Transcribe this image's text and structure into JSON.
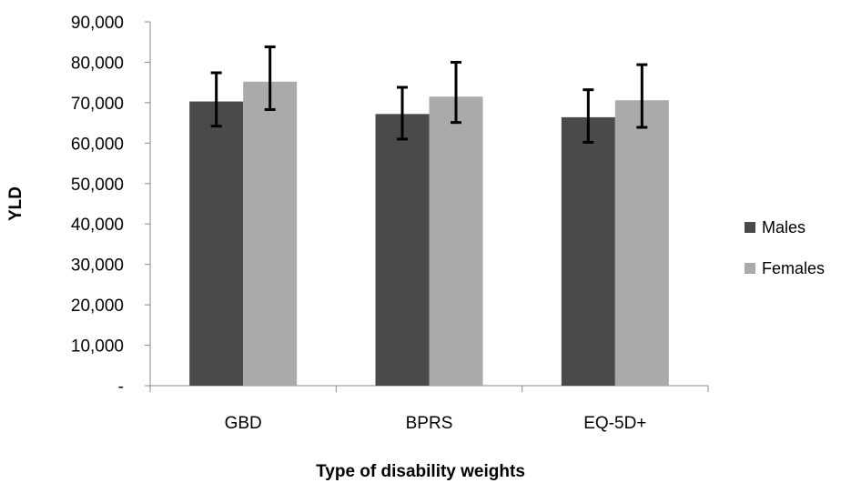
{
  "chart_data": {
    "type": "bar",
    "title": "",
    "xlabel": "Type of disability weights",
    "ylabel": "YLD",
    "categories": [
      "GBD",
      "BPRS",
      "EQ-5D+"
    ],
    "series": [
      {
        "name": "Males",
        "color": "#4a4a4a",
        "values": [
          70300,
          67200,
          66400
        ],
        "error_low": [
          64200,
          61000,
          60200
        ],
        "error_high": [
          77400,
          73800,
          73200
        ]
      },
      {
        "name": "Females",
        "color": "#aaaaaa",
        "values": [
          75200,
          71500,
          70600
        ],
        "error_low": [
          68300,
          65100,
          63900
        ],
        "error_high": [
          83800,
          80000,
          79400
        ]
      }
    ],
    "ylim": [
      0,
      90000
    ],
    "yticks": [
      0,
      10000,
      20000,
      30000,
      40000,
      50000,
      60000,
      70000,
      80000,
      90000
    ],
    "ytick_labels": [
      "-",
      "10,000",
      "20,000",
      "30,000",
      "40,000",
      "50,000",
      "60,000",
      "70,000",
      "80,000",
      "90,000"
    ],
    "grid": false,
    "legend_position": "right"
  }
}
